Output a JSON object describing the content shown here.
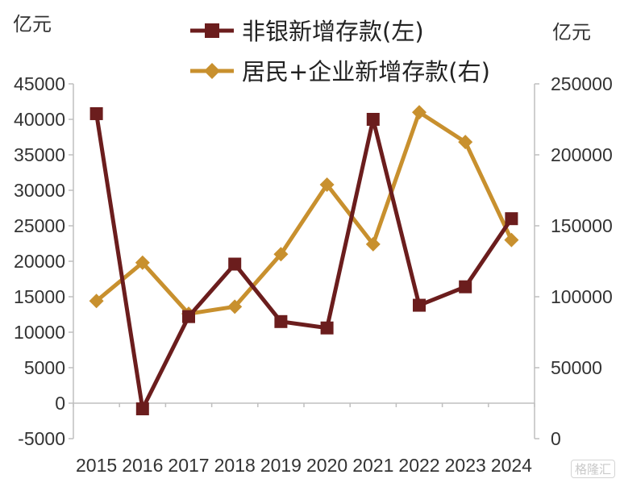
{
  "chart_data": {
    "type": "line",
    "left_unit": "亿元",
    "right_unit": "亿元",
    "categories": [
      "2015",
      "2016",
      "2017",
      "2018",
      "2019",
      "2020",
      "2021",
      "2022",
      "2023",
      "2024"
    ],
    "y_left": {
      "ylim": [
        -5000,
        45000
      ],
      "ticks": [
        "45000",
        "40000",
        "35000",
        "30000",
        "25000",
        "20000",
        "15000",
        "10000",
        "5000",
        "0",
        "-5000"
      ]
    },
    "y_right": {
      "ylim": [
        0,
        250000
      ],
      "ticks": [
        "250000",
        "200000",
        "150000",
        "100000",
        "50000",
        "0"
      ]
    },
    "series": [
      {
        "name": "非银新增存款(左)",
        "axis": "left",
        "color": "#6b1d1d",
        "marker": "square",
        "values": [
          40800,
          -800,
          12200,
          19600,
          11500,
          10600,
          40000,
          13800,
          16400,
          26000
        ]
      },
      {
        "name": "居民+企业新增存款(右)",
        "axis": "right",
        "color": "#c8902e",
        "marker": "diamond",
        "values": [
          97000,
          124000,
          88000,
          93000,
          130000,
          179000,
          137000,
          230000,
          209000,
          140000
        ]
      }
    ],
    "legend_position": "top",
    "grid": false
  },
  "watermark": "格隆汇"
}
